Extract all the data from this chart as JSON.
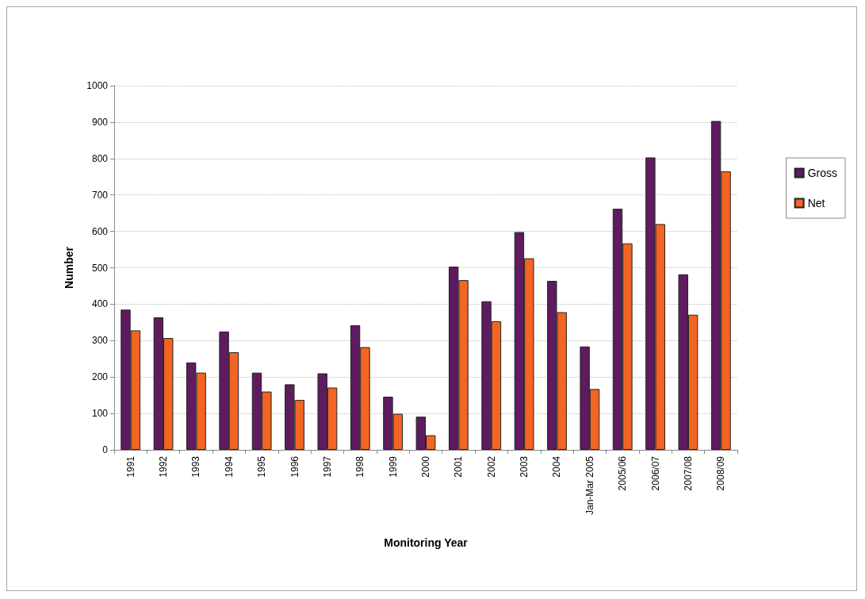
{
  "chart_data": {
    "type": "bar",
    "xlabel": "Monitoring Year",
    "ylabel": "Number",
    "categories": [
      "1991",
      "1992",
      "1993",
      "1994",
      "1995",
      "1996",
      "1997",
      "1998",
      "1999",
      "2000",
      "2001",
      "2002",
      "2003",
      "2004",
      "Jan-Mar 2005",
      "2005/06",
      "2006/07",
      "2007/08",
      "2008/09"
    ],
    "series": [
      {
        "name": "Gross",
        "color": "#5e1b5f",
        "values": [
          385,
          364,
          240,
          325,
          212,
          180,
          210,
          342,
          146,
          91,
          503,
          408,
          598,
          464,
          284,
          662,
          803,
          482,
          903
        ]
      },
      {
        "name": "Net",
        "color": "#f26522",
        "values": [
          328,
          307,
          212,
          268,
          160,
          137,
          171,
          282,
          99,
          40,
          466,
          353,
          526,
          378,
          167,
          567,
          620,
          371,
          765
        ]
      }
    ],
    "ylim": [
      0,
      1000
    ],
    "yticks": [
      0,
      100,
      200,
      300,
      400,
      500,
      600,
      700,
      800,
      900,
      1000
    ],
    "grid": "y",
    "legend": "right"
  }
}
